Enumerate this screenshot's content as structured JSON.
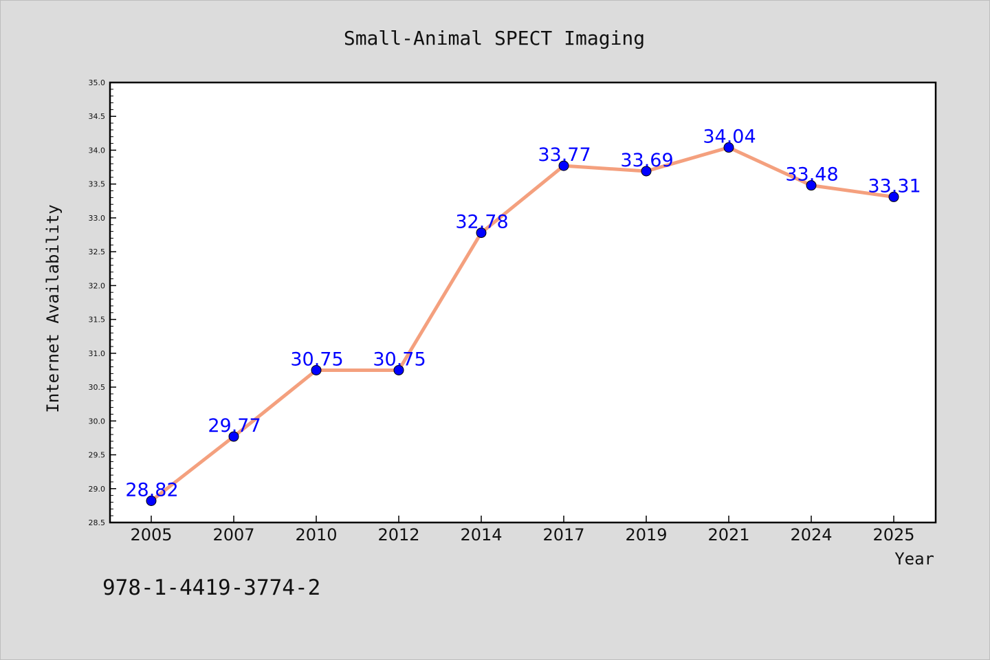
{
  "chart_data": {
    "type": "line",
    "title": "Small-Animal SPECT Imaging",
    "xlabel": "Year",
    "ylabel": "Internet Availability",
    "categories": [
      "2005",
      "2007",
      "2010",
      "2012",
      "2014",
      "2017",
      "2019",
      "2021",
      "2024",
      "2025"
    ],
    "values": [
      28.82,
      29.77,
      30.75,
      30.75,
      32.78,
      33.77,
      33.69,
      34.04,
      33.48,
      33.31
    ],
    "ylim": [
      28.5,
      35.0
    ],
    "yticks": [
      "28.5",
      "29.0",
      "29.5",
      "30.0",
      "30.5",
      "31.0",
      "31.5",
      "32.0",
      "32.5",
      "33.0",
      "33.5",
      "34.0",
      "34.5",
      "35.0"
    ],
    "data_labels": [
      "28.82",
      "29.77",
      "30.75",
      "30.75",
      "32.78",
      "33.77",
      "33.69",
      "34.04",
      "33.48",
      "33.31"
    ],
    "grid": false,
    "legend": "none",
    "colors": {
      "line": "#f4a07e",
      "marker": "#0000ff",
      "label": "#0000ff",
      "background": "#dcdcdc",
      "plot_background": "#ffffff"
    }
  },
  "annotation": {
    "isbn": "978-1-4419-3774-2"
  }
}
